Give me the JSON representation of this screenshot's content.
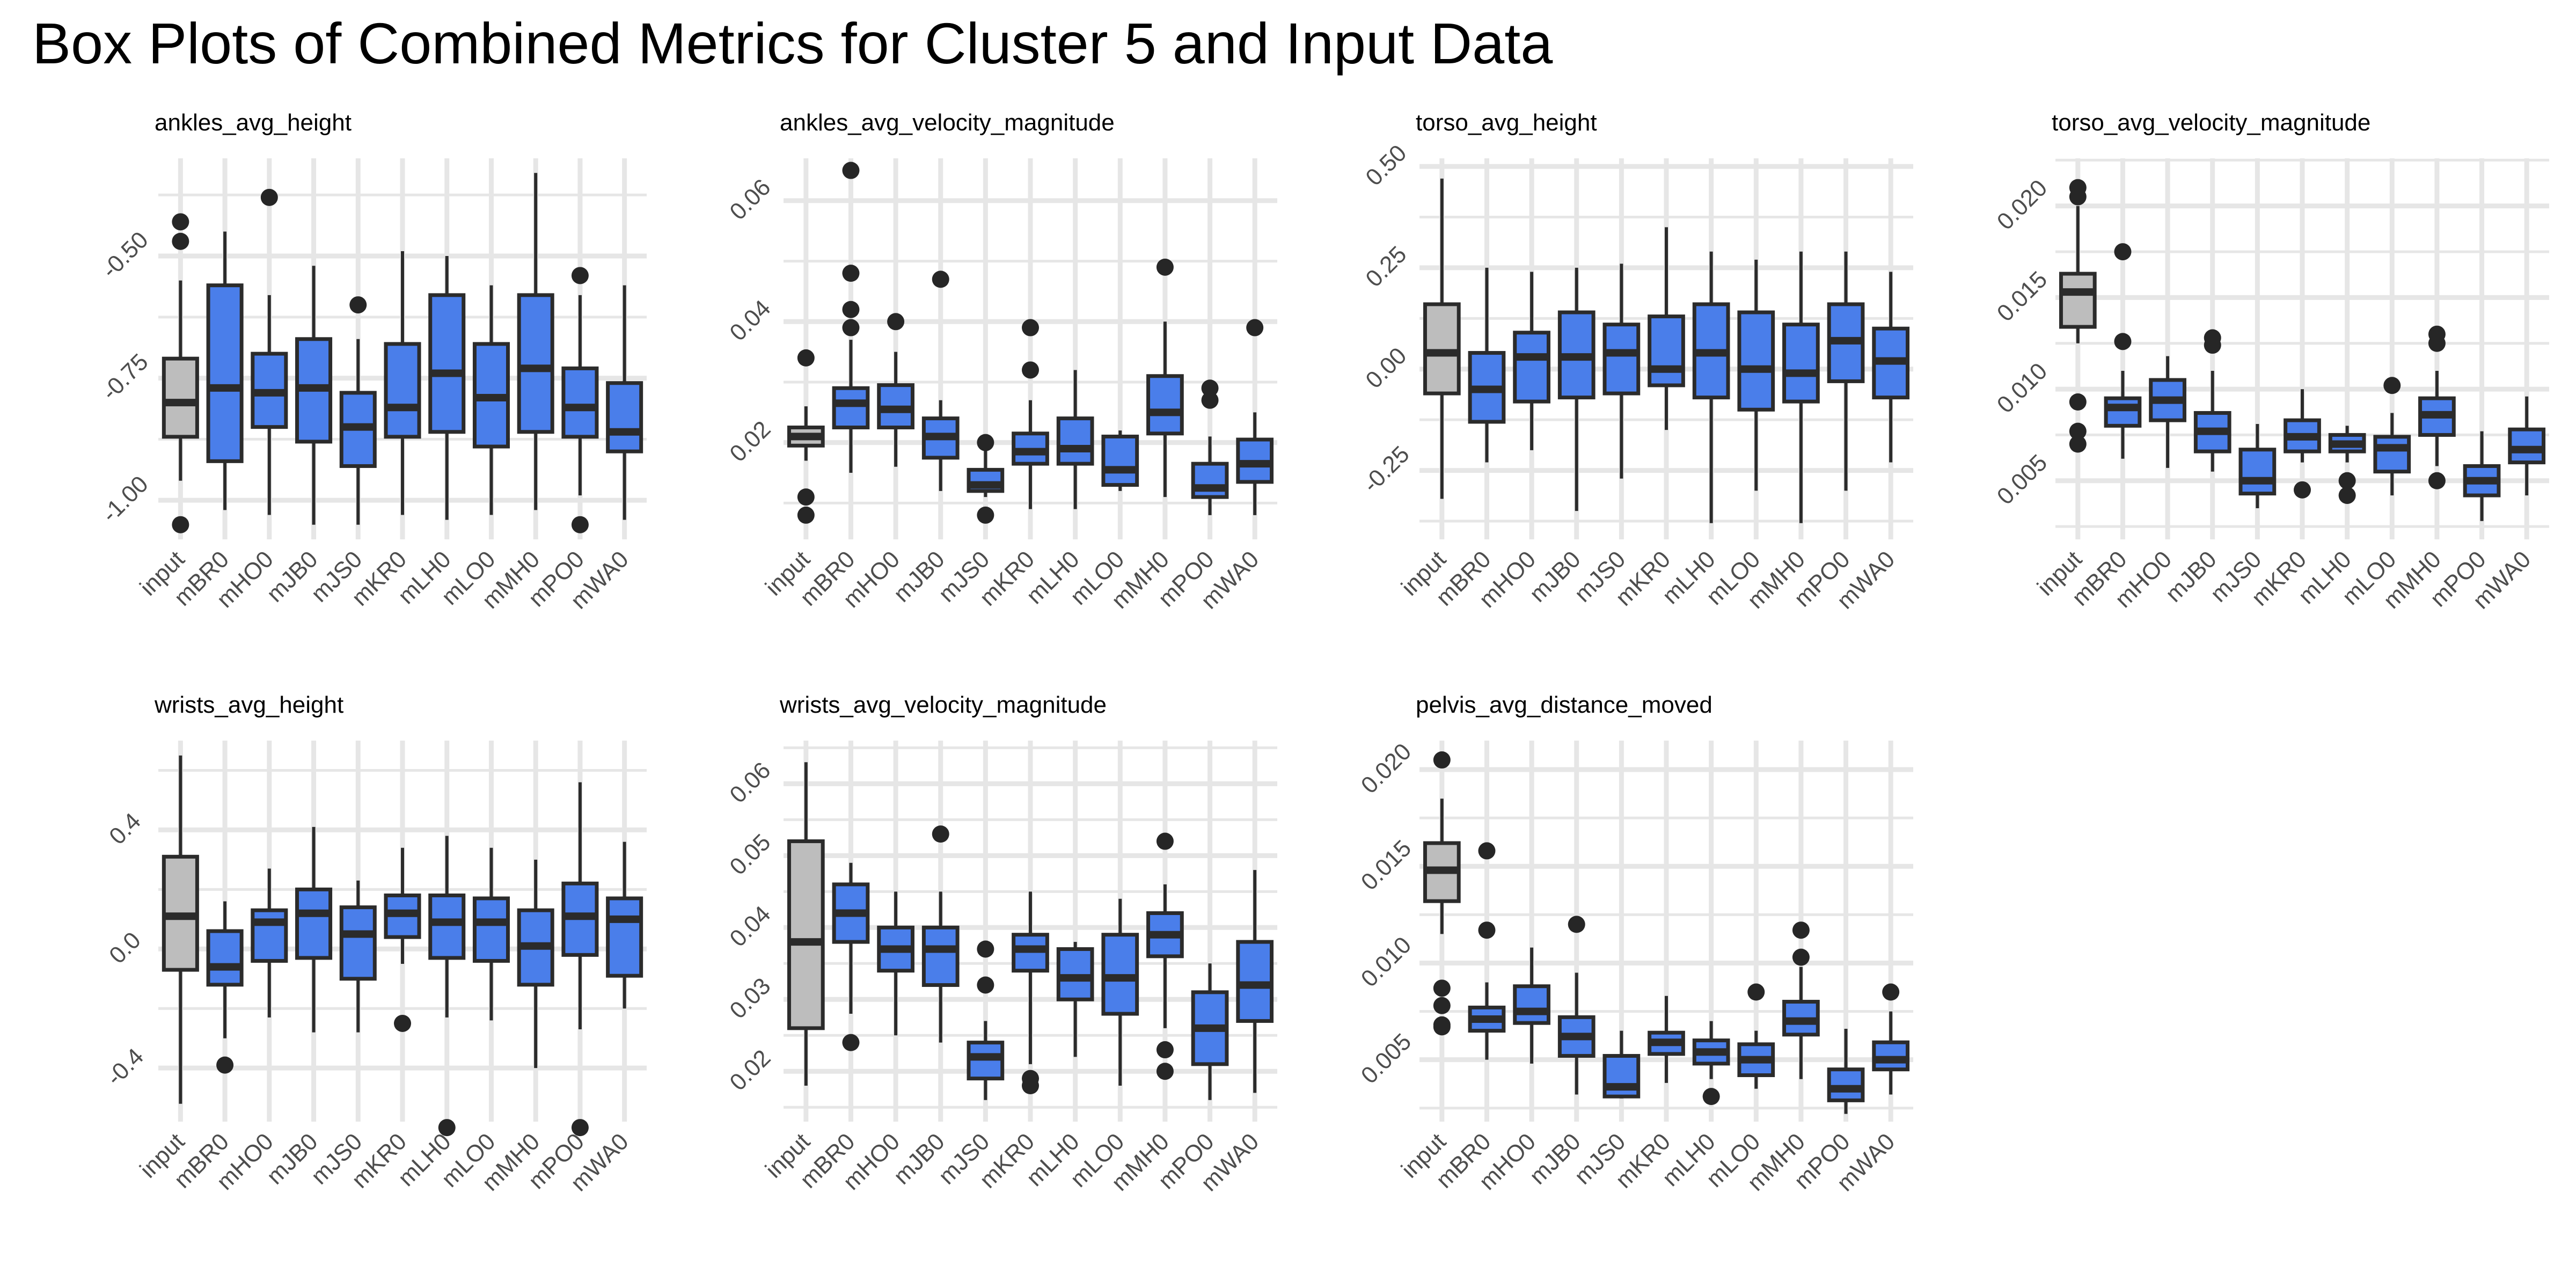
{
  "title": "Box Plots of Combined Metrics for Cluster 5 and Input Data",
  "colors": {
    "input_fill": "#bdbdbd",
    "cluster_fill": "#4a7eea",
    "stroke": "#2b2b2b",
    "grid": "#e6e6e6",
    "outlier": "#262626"
  },
  "chart_data": [
    {
      "type": "box",
      "title": "ankles_avg_height",
      "categories": [
        "input",
        "mBR0",
        "mHO0",
        "mJB0",
        "mJS0",
        "mKR0",
        "mLH0",
        "mLO0",
        "mMH0",
        "mPO0",
        "mWA0"
      ],
      "ylim": [
        -1.08,
        -0.3
      ],
      "yticks": [
        -1.0,
        -0.75,
        -0.5
      ],
      "ytick_labels": [
        "-1.00",
        "-0.75",
        "-0.50"
      ],
      "boxes": [
        {
          "whislo": -0.96,
          "q1": -0.87,
          "med": -0.8,
          "q3": -0.71,
          "whishi": -0.55,
          "fliers": [
            -0.43,
            -0.47,
            -1.05
          ]
        },
        {
          "whislo": -1.02,
          "q1": -0.92,
          "med": -0.77,
          "q3": -0.56,
          "whishi": -0.45,
          "fliers": []
        },
        {
          "whislo": -1.03,
          "q1": -0.85,
          "med": -0.78,
          "q3": -0.7,
          "whishi": -0.58,
          "fliers": [
            -0.38
          ]
        },
        {
          "whislo": -1.05,
          "q1": -0.88,
          "med": -0.77,
          "q3": -0.67,
          "whishi": -0.52,
          "fliers": []
        },
        {
          "whislo": -1.05,
          "q1": -0.93,
          "med": -0.85,
          "q3": -0.78,
          "whishi": -0.67,
          "fliers": [
            -0.6
          ]
        },
        {
          "whislo": -1.03,
          "q1": -0.87,
          "med": -0.81,
          "q3": -0.68,
          "whishi": -0.49,
          "fliers": []
        },
        {
          "whislo": -1.04,
          "q1": -0.86,
          "med": -0.74,
          "q3": -0.58,
          "whishi": -0.5,
          "fliers": []
        },
        {
          "whislo": -1.03,
          "q1": -0.89,
          "med": -0.79,
          "q3": -0.68,
          "whishi": -0.56,
          "fliers": []
        },
        {
          "whislo": -1.02,
          "q1": -0.86,
          "med": -0.73,
          "q3": -0.58,
          "whishi": -0.33,
          "fliers": []
        },
        {
          "whislo": -0.99,
          "q1": -0.87,
          "med": -0.81,
          "q3": -0.73,
          "whishi": -0.58,
          "fliers": [
            -0.54,
            -1.05
          ]
        },
        {
          "whislo": -1.04,
          "q1": -0.9,
          "med": -0.86,
          "q3": -0.76,
          "whishi": -0.56,
          "fliers": []
        }
      ]
    },
    {
      "type": "box",
      "title": "ankles_avg_velocity_magnitude",
      "categories": [
        "input",
        "mBR0",
        "mHO0",
        "mJB0",
        "mJS0",
        "mKR0",
        "mLH0",
        "mLO0",
        "mMH0",
        "mPO0",
        "mWA0"
      ],
      "ylim": [
        0.004,
        0.067
      ],
      "yticks": [
        0.02,
        0.04,
        0.06
      ],
      "ytick_labels": [
        "0.02",
        "0.04",
        "0.06"
      ],
      "boxes": [
        {
          "whislo": 0.017,
          "q1": 0.0195,
          "med": 0.021,
          "q3": 0.0225,
          "whishi": 0.026,
          "fliers": [
            0.034,
            0.011,
            0.008
          ]
        },
        {
          "whislo": 0.015,
          "q1": 0.0225,
          "med": 0.0265,
          "q3": 0.029,
          "whishi": 0.037,
          "fliers": [
            0.065,
            0.048,
            0.042,
            0.039
          ]
        },
        {
          "whislo": 0.016,
          "q1": 0.0225,
          "med": 0.0255,
          "q3": 0.0295,
          "whishi": 0.035,
          "fliers": [
            0.04
          ]
        },
        {
          "whislo": 0.012,
          "q1": 0.0175,
          "med": 0.021,
          "q3": 0.024,
          "whishi": 0.027,
          "fliers": [
            0.047
          ]
        },
        {
          "whislo": 0.011,
          "q1": 0.012,
          "med": 0.013,
          "q3": 0.0155,
          "whishi": 0.019,
          "fliers": [
            0.02,
            0.008
          ]
        },
        {
          "whislo": 0.009,
          "q1": 0.0165,
          "med": 0.0185,
          "q3": 0.0215,
          "whishi": 0.027,
          "fliers": [
            0.039,
            0.032
          ]
        },
        {
          "whislo": 0.009,
          "q1": 0.0165,
          "med": 0.019,
          "q3": 0.024,
          "whishi": 0.032,
          "fliers": []
        },
        {
          "whislo": 0.012,
          "q1": 0.013,
          "med": 0.0155,
          "q3": 0.021,
          "whishi": 0.022,
          "fliers": []
        },
        {
          "whislo": 0.011,
          "q1": 0.0215,
          "med": 0.025,
          "q3": 0.031,
          "whishi": 0.04,
          "fliers": [
            0.049
          ]
        },
        {
          "whislo": 0.008,
          "q1": 0.011,
          "med": 0.0125,
          "q3": 0.0165,
          "whishi": 0.021,
          "fliers": [
            0.029,
            0.027
          ]
        },
        {
          "whislo": 0.008,
          "q1": 0.0135,
          "med": 0.0165,
          "q3": 0.0205,
          "whishi": 0.025,
          "fliers": [
            0.039
          ]
        }
      ]
    },
    {
      "type": "box",
      "title": "torso_avg_height",
      "categories": [
        "input",
        "mBR0",
        "mHO0",
        "mJB0",
        "mJS0",
        "mKR0",
        "mLH0",
        "mLO0",
        "mMH0",
        "mPO0",
        "mWA0"
      ],
      "ylim": [
        -0.42,
        0.52
      ],
      "yticks": [
        -0.25,
        0.0,
        0.25,
        0.5
      ],
      "ytick_labels": [
        "-0.25",
        "0.00",
        "0.25",
        "0.50"
      ],
      "boxes": [
        {
          "whislo": -0.32,
          "q1": -0.06,
          "med": 0.04,
          "q3": 0.16,
          "whishi": 0.47,
          "fliers": []
        },
        {
          "whislo": -0.23,
          "q1": -0.13,
          "med": -0.05,
          "q3": 0.04,
          "whishi": 0.25,
          "fliers": []
        },
        {
          "whislo": -0.2,
          "q1": -0.08,
          "med": 0.03,
          "q3": 0.09,
          "whishi": 0.24,
          "fliers": []
        },
        {
          "whislo": -0.35,
          "q1": -0.07,
          "med": 0.03,
          "q3": 0.14,
          "whishi": 0.25,
          "fliers": []
        },
        {
          "whislo": -0.27,
          "q1": -0.06,
          "med": 0.04,
          "q3": 0.11,
          "whishi": 0.26,
          "fliers": []
        },
        {
          "whislo": -0.15,
          "q1": -0.04,
          "med": 0.0,
          "q3": 0.13,
          "whishi": 0.35,
          "fliers": []
        },
        {
          "whislo": -0.38,
          "q1": -0.07,
          "med": 0.04,
          "q3": 0.16,
          "whishi": 0.29,
          "fliers": []
        },
        {
          "whislo": -0.3,
          "q1": -0.1,
          "med": 0.0,
          "q3": 0.14,
          "whishi": 0.27,
          "fliers": []
        },
        {
          "whislo": -0.38,
          "q1": -0.08,
          "med": -0.01,
          "q3": 0.11,
          "whishi": 0.29,
          "fliers": []
        },
        {
          "whislo": -0.3,
          "q1": -0.03,
          "med": 0.07,
          "q3": 0.16,
          "whishi": 0.29,
          "fliers": []
        },
        {
          "whislo": -0.23,
          "q1": -0.07,
          "med": 0.02,
          "q3": 0.1,
          "whishi": 0.24,
          "fliers": []
        }
      ]
    },
    {
      "type": "box",
      "title": "torso_avg_velocity_magnitude",
      "categories": [
        "input",
        "mBR0",
        "mHO0",
        "mJB0",
        "mJS0",
        "mKR0",
        "mLH0",
        "mLO0",
        "mMH0",
        "mPO0",
        "mWA0"
      ],
      "ylim": [
        0.0018,
        0.0226
      ],
      "yticks": [
        0.005,
        0.01,
        0.015,
        0.02
      ],
      "ytick_labels": [
        "0.005",
        "0.010",
        "0.015",
        "0.020"
      ],
      "boxes": [
        {
          "whislo": 0.0125,
          "q1": 0.0134,
          "med": 0.0153,
          "q3": 0.0163,
          "whishi": 0.02,
          "fliers": [
            0.021,
            0.0205,
            0.0093,
            0.0077,
            0.007
          ]
        },
        {
          "whislo": 0.0062,
          "q1": 0.008,
          "med": 0.009,
          "q3": 0.0095,
          "whishi": 0.011,
          "fliers": [
            0.0175,
            0.0126
          ]
        },
        {
          "whislo": 0.0057,
          "q1": 0.0083,
          "med": 0.0094,
          "q3": 0.0105,
          "whishi": 0.0118,
          "fliers": []
        },
        {
          "whislo": 0.0055,
          "q1": 0.0066,
          "med": 0.0077,
          "q3": 0.0087,
          "whishi": 0.011,
          "fliers": [
            0.0128,
            0.0124
          ]
        },
        {
          "whislo": 0.0035,
          "q1": 0.0043,
          "med": 0.005,
          "q3": 0.0067,
          "whishi": 0.0081,
          "fliers": []
        },
        {
          "whislo": 0.006,
          "q1": 0.0066,
          "med": 0.0074,
          "q3": 0.0083,
          "whishi": 0.01,
          "fliers": [
            0.0045
          ]
        },
        {
          "whislo": 0.006,
          "q1": 0.0066,
          "med": 0.007,
          "q3": 0.0075,
          "whishi": 0.008,
          "fliers": [
            0.005,
            0.0042
          ]
        },
        {
          "whislo": 0.0042,
          "q1": 0.0055,
          "med": 0.0068,
          "q3": 0.0074,
          "whishi": 0.0087,
          "fliers": [
            0.0102
          ]
        },
        {
          "whislo": 0.0058,
          "q1": 0.0075,
          "med": 0.0086,
          "q3": 0.0095,
          "whishi": 0.011,
          "fliers": [
            0.013,
            0.0125,
            0.005
          ]
        },
        {
          "whislo": 0.0028,
          "q1": 0.0042,
          "med": 0.005,
          "q3": 0.0058,
          "whishi": 0.0077,
          "fliers": []
        },
        {
          "whislo": 0.0042,
          "q1": 0.006,
          "med": 0.0067,
          "q3": 0.0078,
          "whishi": 0.0096,
          "fliers": []
        }
      ]
    },
    {
      "type": "box",
      "title": "wrists_avg_height",
      "categories": [
        "input",
        "mBR0",
        "mHO0",
        "mJB0",
        "mJS0",
        "mKR0",
        "mLH0",
        "mLO0",
        "mMH0",
        "mPO0",
        "mWA0"
      ],
      "ylim": [
        -0.58,
        0.7
      ],
      "yticks": [
        -0.4,
        0.0,
        0.4
      ],
      "ytick_labels": [
        "-0.4",
        "0.0",
        "0.4"
      ],
      "boxes": [
        {
          "whislo": -0.52,
          "q1": -0.07,
          "med": 0.11,
          "q3": 0.31,
          "whishi": 0.65,
          "fliers": []
        },
        {
          "whislo": -0.3,
          "q1": -0.12,
          "med": -0.06,
          "q3": 0.06,
          "whishi": 0.16,
          "fliers": [
            -0.39
          ]
        },
        {
          "whislo": -0.23,
          "q1": -0.04,
          "med": 0.09,
          "q3": 0.13,
          "whishi": 0.27,
          "fliers": []
        },
        {
          "whislo": -0.28,
          "q1": -0.03,
          "med": 0.12,
          "q3": 0.2,
          "whishi": 0.41,
          "fliers": []
        },
        {
          "whislo": -0.28,
          "q1": -0.1,
          "med": 0.05,
          "q3": 0.14,
          "whishi": 0.23,
          "fliers": []
        },
        {
          "whislo": -0.05,
          "q1": 0.04,
          "med": 0.12,
          "q3": 0.18,
          "whishi": 0.34,
          "fliers": [
            -0.25
          ]
        },
        {
          "whislo": -0.23,
          "q1": -0.03,
          "med": 0.09,
          "q3": 0.18,
          "whishi": 0.38,
          "fliers": [
            -0.6
          ]
        },
        {
          "whislo": -0.24,
          "q1": -0.04,
          "med": 0.09,
          "q3": 0.17,
          "whishi": 0.34,
          "fliers": []
        },
        {
          "whislo": -0.4,
          "q1": -0.12,
          "med": 0.01,
          "q3": 0.13,
          "whishi": 0.3,
          "fliers": []
        },
        {
          "whislo": -0.27,
          "q1": -0.02,
          "med": 0.11,
          "q3": 0.22,
          "whishi": 0.56,
          "fliers": [
            -0.6
          ]
        },
        {
          "whislo": -0.2,
          "q1": -0.09,
          "med": 0.1,
          "q3": 0.17,
          "whishi": 0.36,
          "fliers": []
        }
      ]
    },
    {
      "type": "box",
      "title": "wrists_avg_velocity_magnitude",
      "categories": [
        "input",
        "mBR0",
        "mHO0",
        "mJB0",
        "mJS0",
        "mKR0",
        "mLH0",
        "mLO0",
        "mMH0",
        "mPO0",
        "mWA0"
      ],
      "ylim": [
        0.013,
        0.066
      ],
      "yticks": [
        0.02,
        0.03,
        0.04,
        0.05,
        0.06
      ],
      "ytick_labels": [
        "0.02",
        "0.03",
        "0.04",
        "0.05",
        "0.06"
      ],
      "boxes": [
        {
          "whislo": 0.018,
          "q1": 0.026,
          "med": 0.038,
          "q3": 0.052,
          "whishi": 0.063,
          "fliers": []
        },
        {
          "whislo": 0.028,
          "q1": 0.038,
          "med": 0.042,
          "q3": 0.046,
          "whishi": 0.049,
          "fliers": [
            0.024
          ]
        },
        {
          "whislo": 0.025,
          "q1": 0.034,
          "med": 0.037,
          "q3": 0.04,
          "whishi": 0.045,
          "fliers": []
        },
        {
          "whislo": 0.024,
          "q1": 0.032,
          "med": 0.037,
          "q3": 0.04,
          "whishi": 0.045,
          "fliers": [
            0.053
          ]
        },
        {
          "whislo": 0.016,
          "q1": 0.019,
          "med": 0.022,
          "q3": 0.024,
          "whishi": 0.027,
          "fliers": [
            0.037,
            0.032
          ]
        },
        {
          "whislo": 0.021,
          "q1": 0.034,
          "med": 0.037,
          "q3": 0.039,
          "whishi": 0.045,
          "fliers": [
            0.019,
            0.018
          ]
        },
        {
          "whislo": 0.022,
          "q1": 0.03,
          "med": 0.033,
          "q3": 0.037,
          "whishi": 0.038,
          "fliers": []
        },
        {
          "whislo": 0.018,
          "q1": 0.028,
          "med": 0.033,
          "q3": 0.039,
          "whishi": 0.044,
          "fliers": []
        },
        {
          "whislo": 0.026,
          "q1": 0.036,
          "med": 0.039,
          "q3": 0.042,
          "whishi": 0.046,
          "fliers": [
            0.052,
            0.023,
            0.02
          ]
        },
        {
          "whislo": 0.016,
          "q1": 0.021,
          "med": 0.026,
          "q3": 0.031,
          "whishi": 0.035,
          "fliers": []
        },
        {
          "whislo": 0.017,
          "q1": 0.027,
          "med": 0.032,
          "q3": 0.038,
          "whishi": 0.048,
          "fliers": []
        }
      ]
    },
    {
      "type": "box",
      "title": "pelvis_avg_distance_moved",
      "categories": [
        "input",
        "mBR0",
        "mHO0",
        "mJB0",
        "mJS0",
        "mKR0",
        "mLH0",
        "mLO0",
        "mMH0",
        "mPO0",
        "mWA0"
      ],
      "ylim": [
        0.0018,
        0.0215
      ],
      "yticks": [
        0.005,
        0.01,
        0.015,
        0.02
      ],
      "ytick_labels": [
        "0.005",
        "0.010",
        "0.015",
        "0.020"
      ],
      "boxes": [
        {
          "whislo": 0.0115,
          "q1": 0.0132,
          "med": 0.0148,
          "q3": 0.0162,
          "whishi": 0.0185,
          "fliers": [
            0.0205,
            0.0087,
            0.0078,
            0.0068,
            0.0067
          ]
        },
        {
          "whislo": 0.005,
          "q1": 0.0065,
          "med": 0.0071,
          "q3": 0.0077,
          "whishi": 0.009,
          "fliers": [
            0.0158,
            0.0117
          ]
        },
        {
          "whislo": 0.0048,
          "q1": 0.0069,
          "med": 0.0075,
          "q3": 0.0088,
          "whishi": 0.0108,
          "fliers": []
        },
        {
          "whislo": 0.0032,
          "q1": 0.0052,
          "med": 0.0062,
          "q3": 0.0072,
          "whishi": 0.0095,
          "fliers": [
            0.012
          ]
        },
        {
          "whislo": 0.003,
          "q1": 0.0031,
          "med": 0.0036,
          "q3": 0.0052,
          "whishi": 0.0065,
          "fliers": []
        },
        {
          "whislo": 0.0038,
          "q1": 0.0053,
          "med": 0.0059,
          "q3": 0.0064,
          "whishi": 0.0083,
          "fliers": []
        },
        {
          "whislo": 0.004,
          "q1": 0.0048,
          "med": 0.0054,
          "q3": 0.006,
          "whishi": 0.007,
          "fliers": [
            0.0031
          ]
        },
        {
          "whislo": 0.0035,
          "q1": 0.0042,
          "med": 0.005,
          "q3": 0.0058,
          "whishi": 0.0065,
          "fliers": [
            0.0085
          ]
        },
        {
          "whislo": 0.004,
          "q1": 0.0063,
          "med": 0.007,
          "q3": 0.008,
          "whishi": 0.0098,
          "fliers": [
            0.0117,
            0.0103
          ]
        },
        {
          "whislo": 0.0022,
          "q1": 0.0029,
          "med": 0.0035,
          "q3": 0.0045,
          "whishi": 0.0066,
          "fliers": []
        },
        {
          "whislo": 0.0032,
          "q1": 0.0045,
          "med": 0.005,
          "q3": 0.0059,
          "whishi": 0.0075,
          "fliers": [
            0.0085
          ]
        }
      ]
    }
  ]
}
